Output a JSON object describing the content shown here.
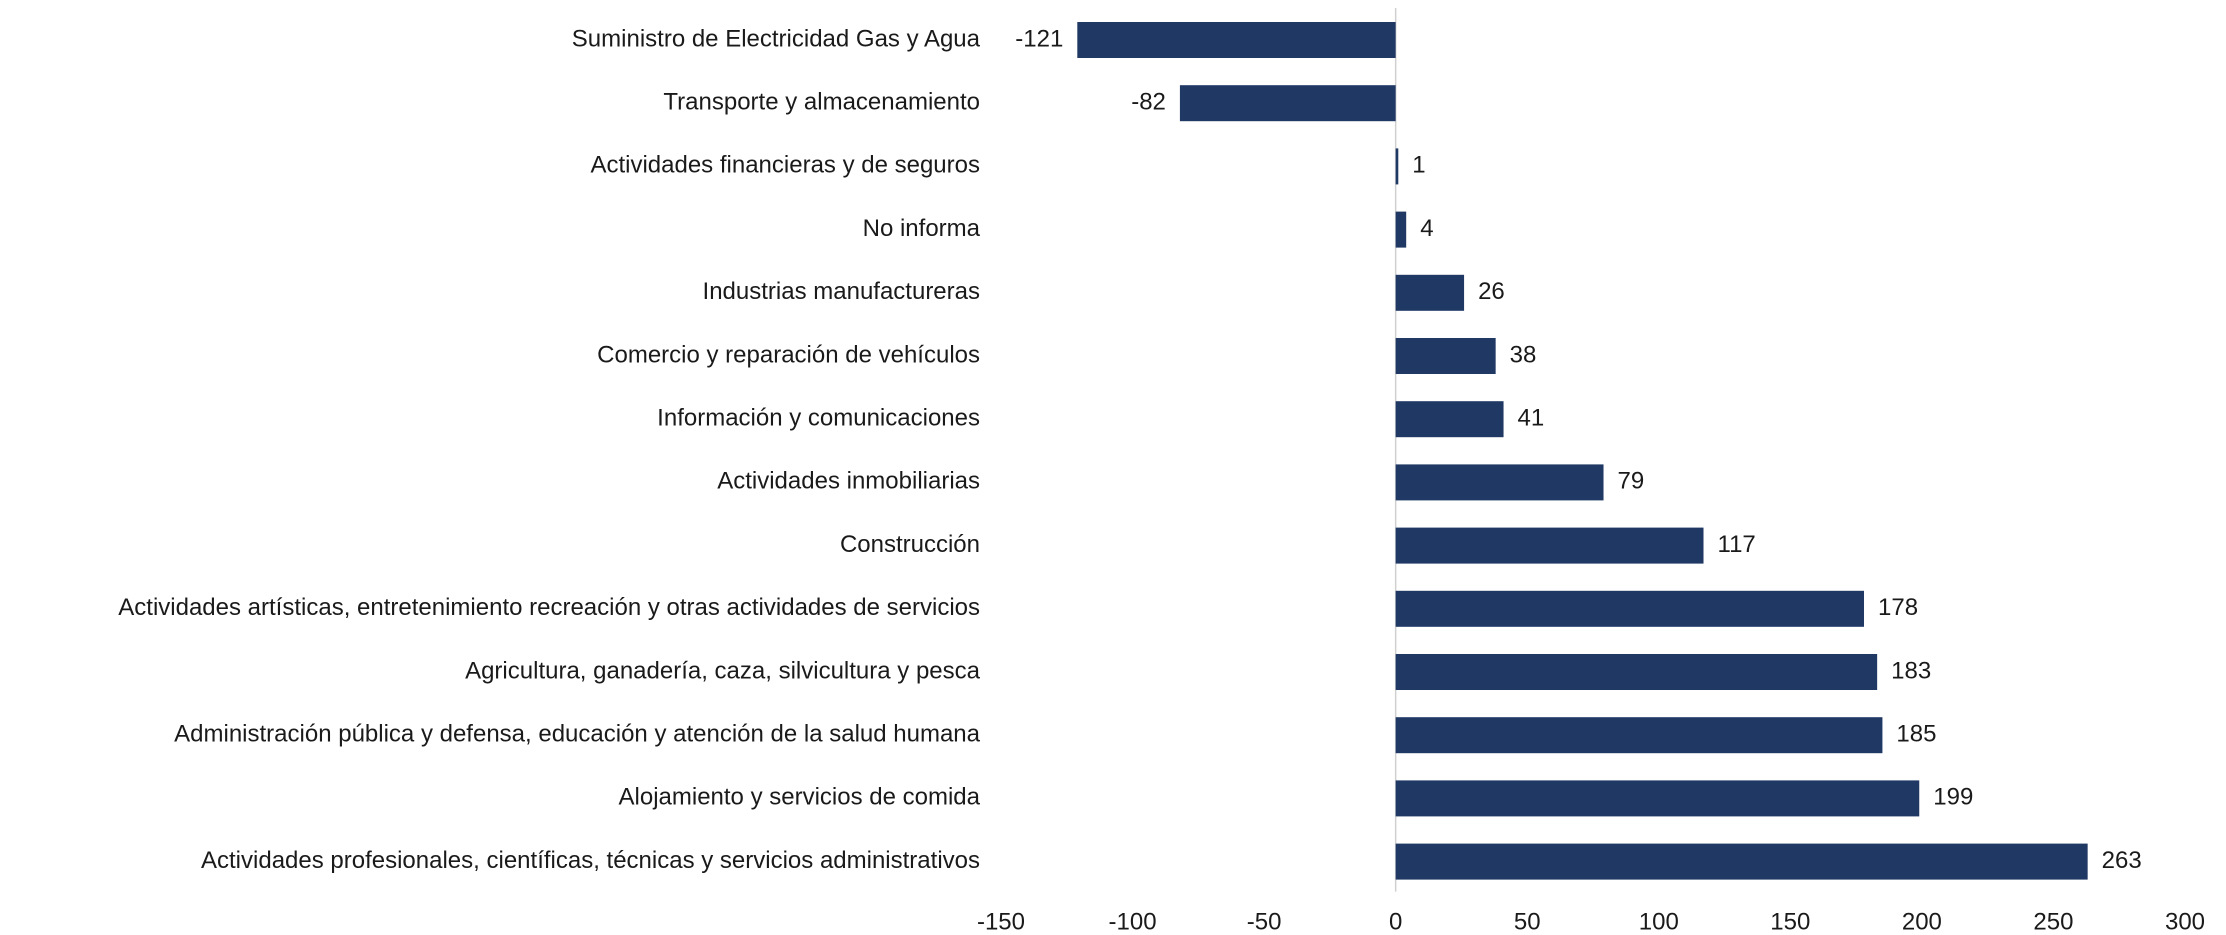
{
  "chart_data": {
    "type": "bar",
    "orientation": "horizontal",
    "categories": [
      "Suministro de Electricidad Gas y Agua",
      "Transporte y almacenamiento",
      "Actividades financieras y de seguros",
      "No informa",
      "Industrias manufactureras",
      "Comercio y reparación de vehículos",
      "Información y comunicaciones",
      "Actividades inmobiliarias",
      "Construcción",
      "Actividades artísticas, entretenimiento recreación y otras actividades de servicios",
      "Agricultura, ganadería, caza, silvicultura y pesca",
      "Administración pública y defensa, educación y atención de la salud humana",
      "Alojamiento y servicios de comida",
      "Actividades profesionales, científicas, técnicas y servicios administrativos"
    ],
    "values": [
      -121,
      -82,
      1,
      4,
      26,
      38,
      41,
      79,
      117,
      178,
      183,
      185,
      199,
      263
    ],
    "color": "#1f3864",
    "xlim": [
      -150,
      300
    ],
    "xticks": [
      -150,
      -100,
      -50,
      0,
      50,
      100,
      150,
      200,
      250,
      300
    ],
    "grid": false
  }
}
